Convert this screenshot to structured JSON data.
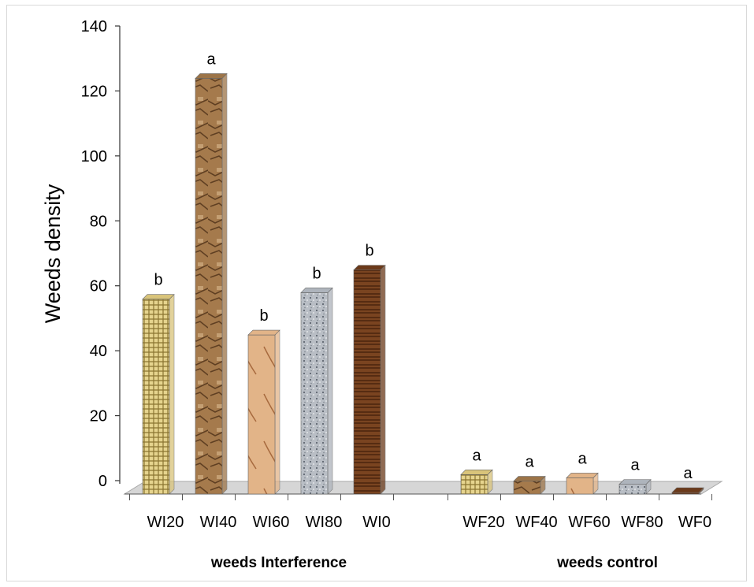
{
  "chart_data": {
    "type": "bar",
    "ylabel": "Weeds density",
    "ylim": [
      0,
      140
    ],
    "yticks": [
      "0",
      "20",
      "40",
      "60",
      "80",
      "100",
      "120",
      "140"
    ],
    "grid": false,
    "groups": [
      {
        "label": "weeds Interference",
        "categories": [
          "WI20",
          "WI40",
          "WI60",
          "WI80",
          "WI0"
        ],
        "values": [
          60,
          128,
          49,
          62,
          69
        ],
        "letters": [
          "b",
          "a",
          "b",
          "b",
          "b"
        ]
      },
      {
        "label": "weeds control",
        "categories": [
          "WF20",
          "WF40",
          "WF60",
          "WF80",
          "WF0"
        ],
        "values": [
          6,
          4,
          5,
          3,
          0
        ],
        "letters": [
          "a",
          "a",
          "a",
          "a",
          "a"
        ]
      }
    ],
    "colors": [
      "#d9c47a",
      "#9c7448",
      "#e2b488",
      "#aeb4bc",
      "#6b3a1a"
    ]
  }
}
